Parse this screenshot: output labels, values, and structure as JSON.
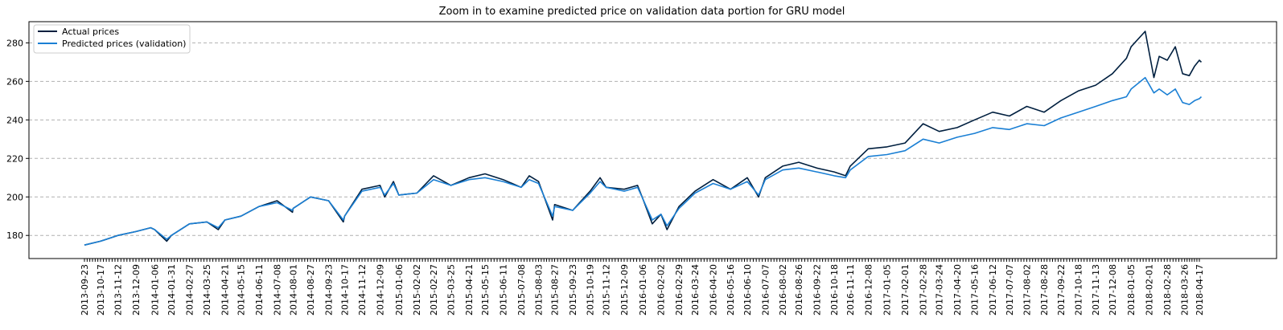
{
  "chart_data": {
    "type": "line",
    "title": "Zoom in to examine predicted price on validation data portion for GRU model",
    "xlabel": "",
    "ylabel": "",
    "ylim": [
      168,
      291
    ],
    "yticks": [
      180,
      200,
      220,
      240,
      260,
      280
    ],
    "grid": "horizontal dashed",
    "legend_position": "top-left",
    "x_tick_labels": [
      "2013-09-23",
      "2013-10-17",
      "2013-11-12",
      "2013-12-09",
      "2014-01-06",
      "2014-01-31",
      "2014-02-27",
      "2014-03-25",
      "2014-04-21",
      "2014-05-15",
      "2014-06-11",
      "2014-07-08",
      "2014-08-01",
      "2014-08-27",
      "2014-09-23",
      "2014-10-17",
      "2014-11-12",
      "2014-12-09",
      "2015-01-06",
      "2015-02-02",
      "2015-02-27",
      "2015-03-25",
      "2015-04-21",
      "2015-05-15",
      "2015-06-11",
      "2015-07-08",
      "2015-08-03",
      "2015-08-27",
      "2015-09-23",
      "2015-10-19",
      "2015-11-12",
      "2015-12-09",
      "2016-01-06",
      "2016-02-02",
      "2016-02-29",
      "2016-03-24",
      "2016-04-20",
      "2016-05-16",
      "2016-06-10",
      "2016-07-07",
      "2016-08-02",
      "2016-08-26",
      "2016-09-22",
      "2016-10-18",
      "2016-11-11",
      "2016-12-08",
      "2017-01-05",
      "2017-02-01",
      "2017-02-28",
      "2017-03-24",
      "2017-04-20",
      "2017-05-16",
      "2017-06-12",
      "2017-07-07",
      "2017-08-02",
      "2017-08-28",
      "2017-09-22",
      "2017-10-18",
      "2017-11-13",
      "2017-12-08",
      "2018-01-05",
      "2018-02-01",
      "2018-02-28",
      "2018-03-26",
      "2018-04-17"
    ],
    "series": [
      {
        "name": "Actual prices",
        "color": "#001f3f",
        "points": [
          [
            "2013-09-23",
            175
          ],
          [
            "2013-10-17",
            177
          ],
          [
            "2013-11-12",
            180
          ],
          [
            "2013-12-09",
            182
          ],
          [
            "2013-12-31",
            184
          ],
          [
            "2014-01-06",
            183
          ],
          [
            "2014-01-24",
            177
          ],
          [
            "2014-01-31",
            180
          ],
          [
            "2014-02-27",
            186
          ],
          [
            "2014-03-25",
            187
          ],
          [
            "2014-04-11",
            183
          ],
          [
            "2014-04-21",
            188
          ],
          [
            "2014-05-15",
            190
          ],
          [
            "2014-06-11",
            195
          ],
          [
            "2014-07-08",
            198
          ],
          [
            "2014-07-31",
            192
          ],
          [
            "2014-08-01",
            194
          ],
          [
            "2014-08-27",
            200
          ],
          [
            "2014-09-23",
            198
          ],
          [
            "2014-10-15",
            187
          ],
          [
            "2014-10-17",
            190
          ],
          [
            "2014-11-12",
            204
          ],
          [
            "2014-12-09",
            206
          ],
          [
            "2014-12-16",
            200
          ],
          [
            "2014-12-29",
            208
          ],
          [
            "2015-01-06",
            201
          ],
          [
            "2015-02-02",
            202
          ],
          [
            "2015-02-27",
            211
          ],
          [
            "2015-03-25",
            206
          ],
          [
            "2015-04-21",
            210
          ],
          [
            "2015-05-15",
            212
          ],
          [
            "2015-06-11",
            209
          ],
          [
            "2015-07-08",
            205
          ],
          [
            "2015-07-20",
            211
          ],
          [
            "2015-08-03",
            208
          ],
          [
            "2015-08-24",
            188
          ],
          [
            "2015-08-27",
            196
          ],
          [
            "2015-09-23",
            193
          ],
          [
            "2015-10-19",
            203
          ],
          [
            "2015-11-03",
            210
          ],
          [
            "2015-11-12",
            205
          ],
          [
            "2015-12-09",
            204
          ],
          [
            "2015-12-29",
            206
          ],
          [
            "2016-01-06",
            199
          ],
          [
            "2016-01-20",
            186
          ],
          [
            "2016-02-02",
            191
          ],
          [
            "2016-02-11",
            183
          ],
          [
            "2016-02-29",
            195
          ],
          [
            "2016-03-24",
            203
          ],
          [
            "2016-04-20",
            209
          ],
          [
            "2016-05-16",
            204
          ],
          [
            "2016-06-10",
            210
          ],
          [
            "2016-06-27",
            200
          ],
          [
            "2016-07-07",
            210
          ],
          [
            "2016-08-02",
            216
          ],
          [
            "2016-08-26",
            218
          ],
          [
            "2016-09-22",
            215
          ],
          [
            "2016-10-18",
            213
          ],
          [
            "2016-11-04",
            211
          ],
          [
            "2016-11-11",
            216
          ],
          [
            "2016-12-08",
            225
          ],
          [
            "2017-01-05",
            226
          ],
          [
            "2017-02-01",
            228
          ],
          [
            "2017-02-28",
            238
          ],
          [
            "2017-03-24",
            234
          ],
          [
            "2017-04-20",
            236
          ],
          [
            "2017-05-16",
            240
          ],
          [
            "2017-06-12",
            244
          ],
          [
            "2017-07-07",
            242
          ],
          [
            "2017-08-02",
            247
          ],
          [
            "2017-08-28",
            244
          ],
          [
            "2017-09-22",
            250
          ],
          [
            "2017-10-18",
            255
          ],
          [
            "2017-11-13",
            258
          ],
          [
            "2017-12-08",
            264
          ],
          [
            "2017-12-29",
            272
          ],
          [
            "2018-01-05",
            278
          ],
          [
            "2018-01-26",
            286
          ],
          [
            "2018-02-08",
            262
          ],
          [
            "2018-02-16",
            273
          ],
          [
            "2018-02-28",
            271
          ],
          [
            "2018-03-12",
            278
          ],
          [
            "2018-03-23",
            264
          ],
          [
            "2018-04-02",
            263
          ],
          [
            "2018-04-10",
            268
          ],
          [
            "2018-04-17",
            271
          ],
          [
            "2018-04-20",
            270
          ]
        ]
      },
      {
        "name": "Predicted prices (validation)",
        "color": "#1a7fd4",
        "points": [
          [
            "2013-09-23",
            175
          ],
          [
            "2013-10-17",
            177
          ],
          [
            "2013-11-12",
            180
          ],
          [
            "2013-12-09",
            182
          ],
          [
            "2013-12-31",
            184
          ],
          [
            "2014-01-06",
            183
          ],
          [
            "2014-01-24",
            178
          ],
          [
            "2014-01-31",
            180
          ],
          [
            "2014-02-27",
            186
          ],
          [
            "2014-03-25",
            187
          ],
          [
            "2014-04-11",
            184
          ],
          [
            "2014-04-21",
            188
          ],
          [
            "2014-05-15",
            190
          ],
          [
            "2014-06-11",
            195
          ],
          [
            "2014-07-08",
            197
          ],
          [
            "2014-07-31",
            193
          ],
          [
            "2014-08-01",
            194
          ],
          [
            "2014-08-27",
            200
          ],
          [
            "2014-09-23",
            198
          ],
          [
            "2014-10-15",
            188
          ],
          [
            "2014-10-17",
            190
          ],
          [
            "2014-11-12",
            203
          ],
          [
            "2014-12-09",
            205
          ],
          [
            "2014-12-16",
            201
          ],
          [
            "2014-12-29",
            207
          ],
          [
            "2015-01-06",
            201
          ],
          [
            "2015-02-02",
            202
          ],
          [
            "2015-02-27",
            209
          ],
          [
            "2015-03-25",
            206
          ],
          [
            "2015-04-21",
            209
          ],
          [
            "2015-05-15",
            210
          ],
          [
            "2015-06-11",
            208
          ],
          [
            "2015-07-08",
            205
          ],
          [
            "2015-07-20",
            209
          ],
          [
            "2015-08-03",
            207
          ],
          [
            "2015-08-24",
            190
          ],
          [
            "2015-08-27",
            195
          ],
          [
            "2015-09-23",
            193
          ],
          [
            "2015-10-19",
            202
          ],
          [
            "2015-11-03",
            208
          ],
          [
            "2015-11-12",
            205
          ],
          [
            "2015-12-09",
            203
          ],
          [
            "2015-12-29",
            205
          ],
          [
            "2016-01-06",
            199
          ],
          [
            "2016-01-20",
            188
          ],
          [
            "2016-02-02",
            191
          ],
          [
            "2016-02-11",
            185
          ],
          [
            "2016-02-29",
            194
          ],
          [
            "2016-03-24",
            202
          ],
          [
            "2016-04-20",
            207
          ],
          [
            "2016-05-16",
            204
          ],
          [
            "2016-06-10",
            208
          ],
          [
            "2016-06-27",
            201
          ],
          [
            "2016-07-07",
            209
          ],
          [
            "2016-08-02",
            214
          ],
          [
            "2016-08-26",
            215
          ],
          [
            "2016-09-22",
            213
          ],
          [
            "2016-10-18",
            211
          ],
          [
            "2016-11-04",
            210
          ],
          [
            "2016-11-11",
            214
          ],
          [
            "2016-12-08",
            221
          ],
          [
            "2017-01-05",
            222
          ],
          [
            "2017-02-01",
            224
          ],
          [
            "2017-02-28",
            230
          ],
          [
            "2017-03-24",
            228
          ],
          [
            "2017-04-20",
            231
          ],
          [
            "2017-05-16",
            233
          ],
          [
            "2017-06-12",
            236
          ],
          [
            "2017-07-07",
            235
          ],
          [
            "2017-08-02",
            238
          ],
          [
            "2017-08-28",
            237
          ],
          [
            "2017-09-22",
            241
          ],
          [
            "2017-10-18",
            244
          ],
          [
            "2017-11-13",
            247
          ],
          [
            "2017-12-08",
            250
          ],
          [
            "2017-12-29",
            252
          ],
          [
            "2018-01-05",
            256
          ],
          [
            "2018-01-26",
            262
          ],
          [
            "2018-02-08",
            254
          ],
          [
            "2018-02-16",
            256
          ],
          [
            "2018-02-28",
            253
          ],
          [
            "2018-03-12",
            256
          ],
          [
            "2018-03-23",
            249
          ],
          [
            "2018-04-02",
            248
          ],
          [
            "2018-04-10",
            250
          ],
          [
            "2018-04-17",
            251
          ],
          [
            "2018-04-20",
            252
          ]
        ]
      }
    ]
  }
}
